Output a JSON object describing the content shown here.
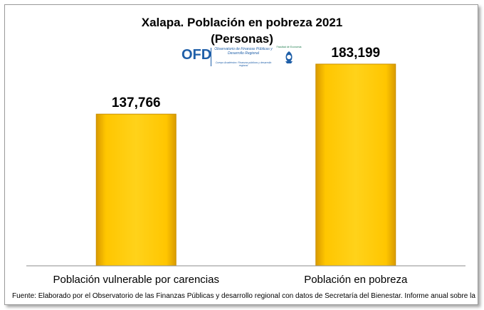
{
  "header": {
    "title": "Xalapa. Población en pobreza 2021",
    "subtitle": "(Personas)"
  },
  "logo": {
    "acronym": "OFD",
    "name_line1": "Observatorio de Finanzas Públicas y",
    "name_line2": "Desarrollo Regional",
    "tagline": "Cuerpo Académico: Finanzas públicas y desarrollo regional",
    "seal_label": "Facultad de Economía"
  },
  "chart_data": {
    "type": "bar",
    "title": "Xalapa. Población en pobreza 2021",
    "subtitle": "(Personas)",
    "categories": [
      "Población vulnerable por carencias",
      "Población en pobreza"
    ],
    "values": [
      137766,
      183199
    ],
    "data_labels": [
      "137,766",
      "183,199"
    ],
    "xlabel": "",
    "ylabel": "",
    "ylim": [
      0,
      200000
    ],
    "grid": false,
    "legend": "none",
    "bar_color": "#FFC000"
  },
  "footer": {
    "source": "Fuente: Elaborado por el Observatorio de las Finanzas Públicas  y desarrollo regional con datos de Secretaría del Bienestar. Informe anual sobre la"
  }
}
